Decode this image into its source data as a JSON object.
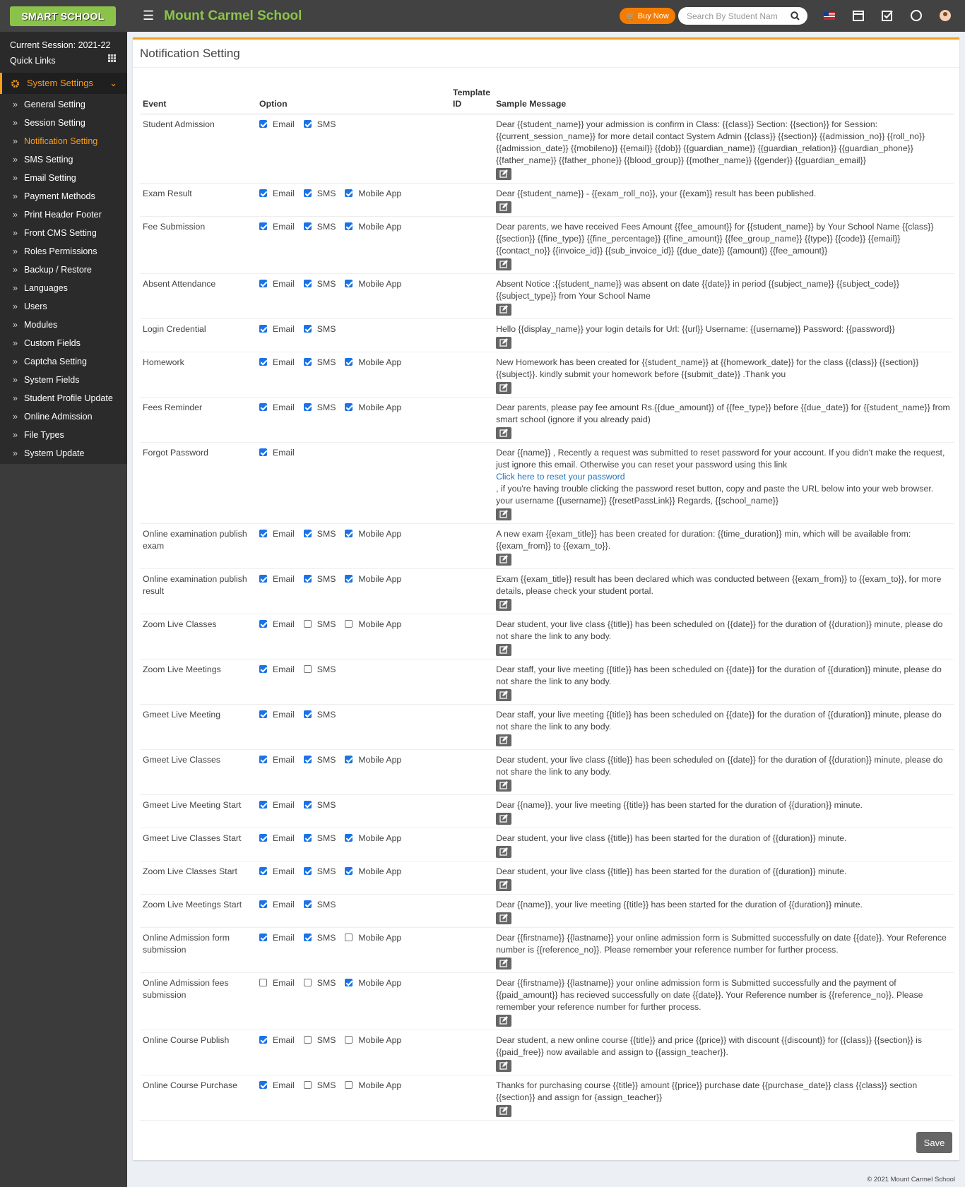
{
  "header": {
    "logo": "SMART SCHOOL",
    "school_name": "Mount Carmel School",
    "buy_now": "Buy Now",
    "search_placeholder": "Search By Student Nam"
  },
  "sidebar": {
    "session": "Current Session: 2021-22",
    "quick_links": "Quick Links",
    "section": "System Settings",
    "active": 2,
    "items": [
      "General Setting",
      "Session Setting",
      "Notification Setting",
      "SMS Setting",
      "Email Setting",
      "Payment Methods",
      "Print Header Footer",
      "Front CMS Setting",
      "Roles Permissions",
      "Backup / Restore",
      "Languages",
      "Users",
      "Modules",
      "Custom Fields",
      "Captcha Setting",
      "System Fields",
      "Student Profile Update",
      "Online Admission",
      "File Types",
      "System Update"
    ]
  },
  "panel": {
    "title": "Notification Setting",
    "save": "Save"
  },
  "table": {
    "headers": [
      "Event",
      "Option",
      "Template ID",
      "Sample Message"
    ],
    "rows": [
      {
        "event": "Student Admission",
        "options": [
          {
            "label": "Email",
            "checked": true
          },
          {
            "label": "SMS",
            "checked": true
          }
        ],
        "message": "Dear {{student_name}} your admission is confirm in Class: {{class}} Section: {{section}} for Session: {{current_session_name}} for more detail contact System Admin {{class}} {{section}} {{admission_no}} {{roll_no}} {{admission_date}} {{mobileno}} {{email}} {{dob}} {{guardian_name}} {{guardian_relation}} {{guardian_phone}} {{father_name}} {{father_phone}} {{blood_group}} {{mother_name}} {{gender}} {{guardian_email}}"
      },
      {
        "event": "Exam Result",
        "options": [
          {
            "label": "Email",
            "checked": true
          },
          {
            "label": "SMS",
            "checked": true
          },
          {
            "label": "Mobile App",
            "checked": true
          }
        ],
        "message": "Dear {{student_name}} - {{exam_roll_no}}, your {{exam}} result has been published."
      },
      {
        "event": "Fee Submission",
        "options": [
          {
            "label": "Email",
            "checked": true
          },
          {
            "label": "SMS",
            "checked": true
          },
          {
            "label": "Mobile App",
            "checked": true
          }
        ],
        "message": "Dear parents, we have received Fees Amount {{fee_amount}} for {{student_name}} by Your School Name {{class}} {{section}} {{fine_type}} {{fine_percentage}} {{fine_amount}} {{fee_group_name}} {{type}} {{code}} {{email}} {{contact_no}} {{invoice_id}} {{sub_invoice_id}} {{due_date}} {{amount}} {{fee_amount}}"
      },
      {
        "event": "Absent Attendance",
        "options": [
          {
            "label": "Email",
            "checked": true
          },
          {
            "label": "SMS",
            "checked": true
          },
          {
            "label": "Mobile App",
            "checked": true
          }
        ],
        "message": "Absent Notice :{{student_name}} was absent on date {{date}} in period {{subject_name}} {{subject_code}} {{subject_type}} from Your School Name"
      },
      {
        "event": "Login Credential",
        "options": [
          {
            "label": "Email",
            "checked": true
          },
          {
            "label": "SMS",
            "checked": true
          }
        ],
        "message": "Hello {{display_name}} your login details for Url: {{url}} Username: {{username}} Password: {{password}}"
      },
      {
        "event": "Homework",
        "options": [
          {
            "label": "Email",
            "checked": true
          },
          {
            "label": "SMS",
            "checked": true
          },
          {
            "label": "Mobile App",
            "checked": true
          }
        ],
        "message": "New Homework has been created for {{student_name}} at {{homework_date}} for the class {{class}} {{section}} {{subject}}. kindly submit your homework before {{submit_date}} .Thank you"
      },
      {
        "event": "Fees Reminder",
        "options": [
          {
            "label": "Email",
            "checked": true
          },
          {
            "label": "SMS",
            "checked": true
          },
          {
            "label": "Mobile App",
            "checked": true
          }
        ],
        "message": "Dear parents, please pay fee amount Rs.{{due_amount}} of {{fee_type}} before {{due_date}} for {{student_name}} from smart school (ignore if you already paid)"
      },
      {
        "event": "Forgot Password",
        "options": [
          {
            "label": "Email",
            "checked": true
          }
        ],
        "message": "Dear {{name}} , Recently a request was submitted to reset password for your account. If you didn't make the request, just ignore this email. Otherwise you can reset your password using this link",
        "link": "Click here to reset your password",
        "message_after": ", if you're having trouble clicking the password reset button, copy and paste the URL below into your web browser. your username {{username}} {{resetPassLink}} Regards, {{school_name}}"
      },
      {
        "event": "Online examination publish exam",
        "options": [
          {
            "label": "Email",
            "checked": true
          },
          {
            "label": "SMS",
            "checked": true
          },
          {
            "label": "Mobile App",
            "checked": true
          }
        ],
        "message": "A new exam {{exam_title}} has been created for duration: {{time_duration}} min, which will be available from: {{exam_from}} to {{exam_to}}."
      },
      {
        "event": "Online examination publish result",
        "options": [
          {
            "label": "Email",
            "checked": true
          },
          {
            "label": "SMS",
            "checked": true
          },
          {
            "label": "Mobile App",
            "checked": true
          }
        ],
        "message": "Exam {{exam_title}} result has been declared which was conducted between {{exam_from}} to {{exam_to}}, for more details, please check your student portal."
      },
      {
        "event": "Zoom Live Classes",
        "options": [
          {
            "label": "Email",
            "checked": true
          },
          {
            "label": "SMS",
            "checked": false
          },
          {
            "label": "Mobile App",
            "checked": false
          }
        ],
        "message": "Dear student, your live class {{title}} has been scheduled on {{date}} for the duration of {{duration}} minute, please do not share the link to any body."
      },
      {
        "event": "Zoom Live Meetings",
        "options": [
          {
            "label": "Email",
            "checked": true
          },
          {
            "label": "SMS",
            "checked": false
          }
        ],
        "message": "Dear staff, your live meeting {{title}} has been scheduled on {{date}} for the duration of {{duration}} minute, please do not share the link to any body."
      },
      {
        "event": "Gmeet Live Meeting",
        "options": [
          {
            "label": "Email",
            "checked": true
          },
          {
            "label": "SMS",
            "checked": true
          }
        ],
        "message": "Dear staff, your live meeting {{title}} has been scheduled on {{date}} for the duration of {{duration}} minute, please do not share the link to any body."
      },
      {
        "event": "Gmeet Live Classes",
        "options": [
          {
            "label": "Email",
            "checked": true
          },
          {
            "label": "SMS",
            "checked": true
          },
          {
            "label": "Mobile App",
            "checked": true
          }
        ],
        "message": "Dear student, your live class {{title}} has been scheduled on {{date}} for the duration of {{duration}} minute, please do not share the link to any body."
      },
      {
        "event": "Gmeet Live Meeting Start",
        "options": [
          {
            "label": "Email",
            "checked": true
          },
          {
            "label": "SMS",
            "checked": true
          }
        ],
        "message": "Dear {{name}}, your live meeting {{title}} has been started for the duration of {{duration}} minute."
      },
      {
        "event": "Gmeet Live Classes Start",
        "options": [
          {
            "label": "Email",
            "checked": true
          },
          {
            "label": "SMS",
            "checked": true
          },
          {
            "label": "Mobile App",
            "checked": true
          }
        ],
        "message": "Dear student, your live class {{title}} has been started for the duration of {{duration}} minute."
      },
      {
        "event": "Zoom Live Classes Start",
        "options": [
          {
            "label": "Email",
            "checked": true
          },
          {
            "label": "SMS",
            "checked": true
          },
          {
            "label": "Mobile App",
            "checked": true
          }
        ],
        "message": "Dear student, your live class {{title}} has been started for the duration of {{duration}} minute."
      },
      {
        "event": "Zoom Live Meetings Start",
        "options": [
          {
            "label": "Email",
            "checked": true
          },
          {
            "label": "SMS",
            "checked": true
          }
        ],
        "message": "Dear {{name}}, your live meeting {{title}} has been started for the duration of {{duration}} minute."
      },
      {
        "event": "Online Admission form submission",
        "options": [
          {
            "label": "Email",
            "checked": true
          },
          {
            "label": "SMS",
            "checked": true
          },
          {
            "label": "Mobile App",
            "checked": false
          }
        ],
        "message": "Dear {{firstname}} {{lastname}} your online admission form is Submitted successfully on date {{date}}. Your Reference number is {{reference_no}}. Please remember your reference number for further process."
      },
      {
        "event": "Online Admission fees submission",
        "options": [
          {
            "label": "Email",
            "checked": false
          },
          {
            "label": "SMS",
            "checked": false
          },
          {
            "label": "Mobile App",
            "checked": true
          }
        ],
        "message": "Dear {{firstname}} {{lastname}} your online admission form is Submitted successfully and the payment of {{paid_amount}} has recieved successfully on date {{date}}. Your Reference number is {{reference_no}}. Please remember your reference number for further process."
      },
      {
        "event": "Online Course Publish",
        "options": [
          {
            "label": "Email",
            "checked": true
          },
          {
            "label": "SMS",
            "checked": false
          },
          {
            "label": "Mobile App",
            "checked": false
          }
        ],
        "message": "Dear student, a new online course {{title}} and price {{price}} with discount {{discount}} for {{class}} {{section}} is {{paid_free}} now available and assign to {{assign_teacher}}."
      },
      {
        "event": "Online Course Purchase",
        "options": [
          {
            "label": "Email",
            "checked": true
          },
          {
            "label": "SMS",
            "checked": false
          },
          {
            "label": "Mobile App",
            "checked": false
          }
        ],
        "message": "Thanks for purchasing course {{title}} amount {{price}} purchase date {{purchase_date}} class {{class}} section {{section}} and assign for {assign_teacher}}"
      }
    ]
  },
  "footer": "© 2021 Mount Carmel School"
}
